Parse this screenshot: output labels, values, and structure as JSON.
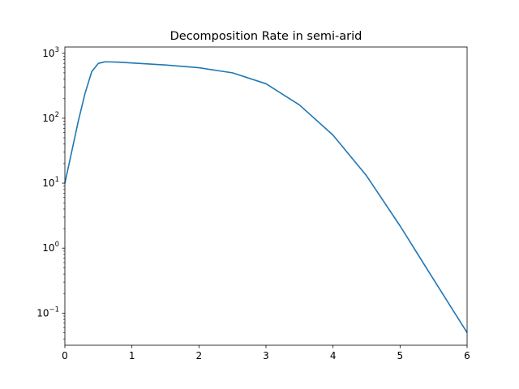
{
  "chart_data": {
    "type": "line",
    "title": "Decomposition Rate in semi-arid",
    "xlabel": "",
    "ylabel": "",
    "xlim": [
      0,
      6
    ],
    "ylim": [
      0.032,
      1250
    ],
    "yscale": "log",
    "grid": false,
    "x_ticks": [
      0,
      1,
      2,
      3,
      4,
      5,
      6
    ],
    "x_tick_labels": [
      "0",
      "1",
      "2",
      "3",
      "4",
      "5",
      "6"
    ],
    "y_ticks": [
      0.1,
      1,
      10,
      100,
      1000
    ],
    "y_tick_labels": [
      {
        "base": "10",
        "exp": "−1"
      },
      {
        "base": "10",
        "exp": "0"
      },
      {
        "base": "10",
        "exp": "1"
      },
      {
        "base": "10",
        "exp": "2"
      },
      {
        "base": "10",
        "exp": "3"
      }
    ],
    "series": [
      {
        "color": "#1f77b4",
        "x": [
          0,
          0.1,
          0.2,
          0.3,
          0.4,
          0.5,
          0.6,
          0.8,
          1.0,
          1.5,
          2.0,
          2.5,
          3.0,
          3.5,
          4.0,
          4.5,
          5.0,
          5.5,
          6.0
        ],
        "y": [
          10,
          30,
          90,
          240,
          520,
          700,
          740,
          730,
          710,
          660,
          600,
          500,
          340,
          160,
          55,
          13,
          2.2,
          0.33,
          0.05
        ]
      }
    ]
  }
}
